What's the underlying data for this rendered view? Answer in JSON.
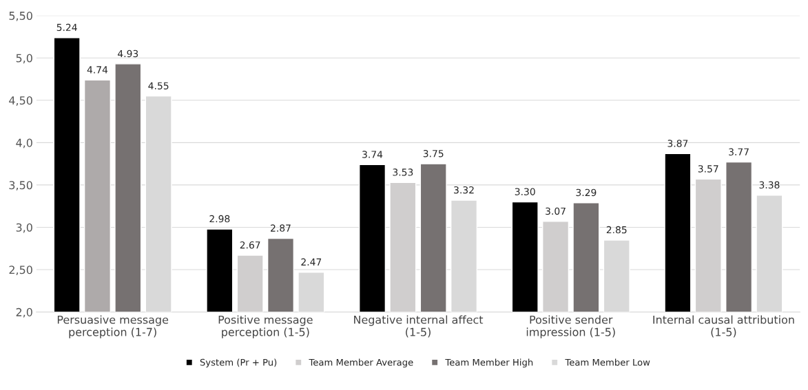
{
  "chart_data": {
    "type": "bar",
    "categories": [
      "Persuasive message\nperception (1-7)",
      "Positive message\nperception (1-5)",
      "Negative internal affect\n(1-5)",
      "Positive sender\nimpression (1-5)",
      "Internal causal attribution\n(1-5)"
    ],
    "series": [
      {
        "name": "System (Pr + Pu)",
        "color": "#000000",
        "values": [
          5.24,
          2.98,
          3.74,
          3.3,
          3.87
        ],
        "value_labels": [
          "5.24",
          "2.98",
          "3.74",
          "3.30",
          "3.87"
        ]
      },
      {
        "name": "Team Member Average",
        "color": "#d0cece",
        "colors": [
          "#aeaaaa",
          "#d0cece",
          "#d0cece",
          "#d0cece",
          "#d0cece"
        ],
        "values": [
          4.74,
          2.67,
          3.53,
          3.07,
          3.57
        ],
        "value_labels": [
          "4.74",
          "2.67",
          "3.53",
          "3.07",
          "3.57"
        ]
      },
      {
        "name": "Team Member High",
        "color": "#767171",
        "values": [
          4.93,
          2.87,
          3.75,
          3.29,
          3.77
        ],
        "value_labels": [
          "4.93",
          "2.87",
          "3.75",
          "3.29",
          "3.77"
        ]
      },
      {
        "name": "Team Member Low",
        "color": "#d9d9d9",
        "values": [
          4.55,
          2.47,
          3.32,
          2.85,
          3.38
        ],
        "value_labels": [
          "4.55",
          "2.47",
          "3.32",
          "2.85",
          "3.38"
        ]
      }
    ],
    "ylim": [
      2.0,
      5.5
    ],
    "yticks": [
      {
        "value": 2.0,
        "label": "2,0"
      },
      {
        "value": 2.5,
        "label": "2,50"
      },
      {
        "value": 3.0,
        "label": "3,0"
      },
      {
        "value": 3.5,
        "label": "3,50"
      },
      {
        "value": 4.0,
        "label": "4,0"
      },
      {
        "value": 4.5,
        "label": "4,50"
      },
      {
        "value": 5.0,
        "label": "5,0"
      },
      {
        "value": 5.5,
        "label": "5,50"
      }
    ],
    "grid": "y",
    "legend": "bottom"
  }
}
